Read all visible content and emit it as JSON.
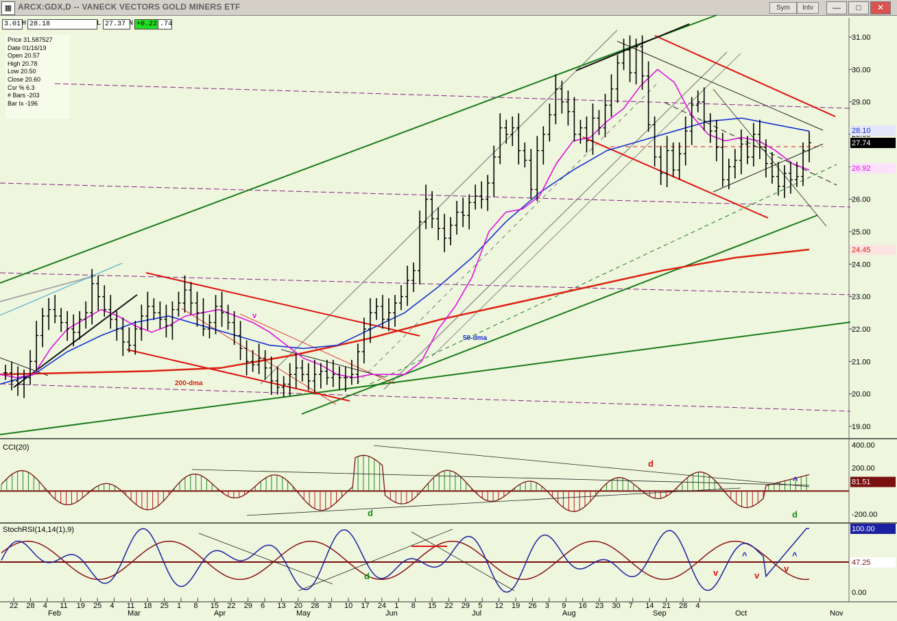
{
  "window": {
    "title": "ARCX:GDX,D -- VANECK VECTORS GOLD MINERS ETF",
    "sym_label": "Sym",
    "intv_label": "Intv",
    "minimize": "—",
    "maximize": "□",
    "close": "✕"
  },
  "header": {
    "open_partial": "3.01",
    "h_label": "H",
    "high": "28.18",
    "l_label": "L",
    "low": "27.37",
    "n_label": "N",
    "change": "+0.22",
    "trail": ".74"
  },
  "info": {
    "rows": [
      "Price  31.587527",
      "Date  01/16/19",
      "Open  20.57",
      "High  20.78",
      "Low  20.50",
      "Close  20.60",
      "Csr %  6.3",
      "# Bars -203",
      "Bar Ix  -196"
    ]
  },
  "colors": {
    "background": "#eef7dd",
    "price_bars": "#000000",
    "ema_magenta": "#e010e0",
    "dma50_blue": "#1530d0",
    "dma200_red": "#dd2010",
    "trend_green": "#1a7a1a",
    "channel_red": "#e01010",
    "resistance_purple": "#8a1a8a",
    "cci_pos": "#1a8a1a",
    "cci_neg": "#c01010",
    "stoch_fast": "#1a20a0",
    "stoch_slow": "#8a1010"
  },
  "chart_data": [
    {
      "type": "ohlc",
      "panel": "price",
      "x_ticks": [
        "22",
        "28",
        "4",
        "11",
        "19",
        "25",
        "4",
        "11",
        "18",
        "25",
        "1",
        "8",
        "15",
        "22",
        "29",
        "6",
        "13",
        "20",
        "28",
        "3",
        "10",
        "17",
        "24",
        "1",
        "8",
        "15",
        "22",
        "29",
        "5",
        "12",
        "19",
        "26",
        "3",
        "9",
        "16",
        "23",
        "30",
        "7",
        "14",
        "21",
        "28",
        "4"
      ],
      "months": [
        "Feb",
        "Mar",
        "Apr",
        "May",
        "Jun",
        "Jul",
        "Aug",
        "Sep",
        "Oct",
        "Nov"
      ],
      "y_ticks": [
        "31.00",
        "30.00",
        "29.00",
        "28.00",
        "27.00",
        "26.00",
        "25.00",
        "24.00",
        "23.00",
        "22.00",
        "21.00",
        "20.00",
        "19.00"
      ],
      "ylim": [
        18.7,
        31.7
      ],
      "close": [
        20.65,
        20.4,
        20.3,
        20.5,
        21.0,
        21.8,
        22.4,
        22.6,
        22.4,
        22.2,
        22.0,
        21.9,
        22.3,
        22.5,
        23.4,
        23.0,
        22.6,
        22.3,
        22.0,
        21.6,
        21.5,
        22.0,
        22.4,
        22.7,
        22.5,
        22.3,
        22.1,
        22.6,
        22.8,
        23.2,
        22.8,
        22.5,
        22.0,
        22.2,
        22.7,
        22.5,
        22.2,
        21.8,
        21.4,
        21.0,
        20.9,
        21.1,
        20.8,
        20.4,
        20.2,
        20.3,
        20.6,
        20.8,
        20.6,
        20.4,
        20.6,
        20.7,
        20.5,
        20.6,
        20.5,
        20.5,
        20.6,
        21.3,
        22.0,
        22.5,
        22.7,
        22.3,
        22.5,
        22.8,
        23.0,
        23.5,
        23.8,
        25.3,
        26.0,
        25.4,
        25.1,
        24.8,
        25.2,
        25.6,
        25.5,
        25.9,
        26.1,
        26.0,
        26.5,
        27.3,
        28.2,
        28.0,
        28.2,
        27.5,
        27.2,
        26.3,
        27.5,
        28.0,
        28.6,
        29.4,
        29.0,
        28.7,
        28.0,
        28.2,
        27.8,
        28.5,
        28.2,
        28.9,
        29.4,
        30.2,
        30.6,
        29.9,
        30.7,
        29.8,
        28.3,
        27.3,
        26.8,
        27.5,
        26.9,
        27.4,
        28.1,
        28.9,
        29.0,
        28.4,
        28.1,
        27.6,
        26.6,
        27.0,
        27.2,
        27.7,
        27.3,
        28.0,
        27.6,
        27.1,
        26.7,
        26.4,
        26.8,
        26.6,
        26.7,
        27.5,
        27.74
      ],
      "ema": {
        "name": "",
        "period_label": "",
        "approx": [
          20.6,
          20.5,
          20.6,
          21.4,
          22.0,
          22.3,
          22.6,
          22.4,
          22.1,
          21.9,
          22.1,
          22.4,
          22.5,
          22.6,
          22.4,
          22.2,
          21.9,
          21.5,
          21.1,
          20.9,
          20.6,
          20.5,
          20.6,
          20.6,
          20.6,
          21.0,
          22.0,
          22.7,
          23.6,
          25.0,
          25.6,
          25.7,
          26.1,
          27.1,
          27.8,
          27.9,
          28.4,
          28.8,
          29.5,
          30.0,
          29.6,
          28.6,
          28.0,
          27.8,
          27.9,
          27.8,
          27.5,
          27.1,
          26.9
        ]
      },
      "dma50": {
        "label": "50-dma",
        "approx": [
          20.3,
          20.6,
          21.3,
          21.8,
          22.2,
          22.4,
          22.1,
          21.8,
          21.5,
          21.4,
          21.5,
          22.0,
          22.5,
          23.3,
          24.2,
          25.3,
          26.2,
          26.9,
          27.5,
          27.8,
          28.1,
          28.4,
          28.5,
          28.3,
          28.1
        ]
      },
      "dma200": {
        "label": "200-dma",
        "approx": [
          20.6,
          20.65,
          20.7,
          20.8,
          21.2,
          21.7,
          22.3,
          22.8,
          23.3,
          23.8,
          24.2,
          24.45
        ]
      },
      "right_labels": [
        {
          "text": "28.10",
          "color": "#1530d0"
        },
        {
          "text": "27.74",
          "color": "#000000"
        },
        {
          "text": "26.92",
          "color": "#e010e0"
        },
        {
          "text": "24.45",
          "color": "#dd2010"
        }
      ]
    },
    {
      "type": "bar",
      "panel": "cci",
      "title": "CCI(20)",
      "y_ticks": [
        "400.00",
        "200.00",
        "81.51",
        "-200.00"
      ],
      "current": "81.51",
      "annotations": [
        "d",
        "d",
        "^",
        "d"
      ]
    },
    {
      "type": "line",
      "panel": "stoch",
      "title": "StochRSI(14,14(1),9)",
      "y_ticks": [
        "100.00",
        "47.25",
        "0.00"
      ],
      "current_fast": "100.00",
      "current_slow": "47.25",
      "annotations": [
        "d",
        "^",
        "^",
        "v",
        "v",
        "v"
      ]
    }
  ],
  "labels": {
    "dma50": "50-dma",
    "dma200": "200-dma",
    "cci_title": "CCI(20)",
    "stoch_title": "StochRSI(14,14(1),9)",
    "cci_cur": "81.51",
    "stoch_fast_cur": "100.00",
    "stoch_slow_cur": "47.25",
    "p1": "28.10",
    "p2": "27.74",
    "p3": "26.92",
    "p4": "24.45",
    "ann_d_red": "d",
    "ann_d_green": "d",
    "ann_caret": "^",
    "ann_d_green2": "d",
    "ann_v": "v"
  }
}
